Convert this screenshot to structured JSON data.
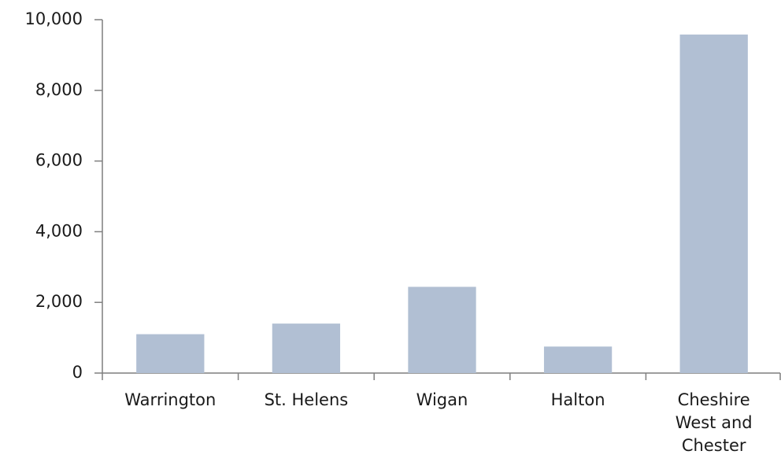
{
  "chart_data": {
    "type": "bar",
    "categories": [
      "Warrington",
      "St. Helens",
      "Wigan",
      "Halton",
      "Cheshire West and Chester"
    ],
    "values": [
      1100,
      1400,
      2440,
      750,
      9580
    ],
    "color": "#b1bfd3",
    "ylim": [
      0,
      10000
    ],
    "yticks": [
      0,
      {
        "value": 2000,
        "label": "2,000"
      },
      {
        "value": 4000,
        "label": "4,000"
      },
      {
        "value": 6000,
        "label": "6,000"
      },
      {
        "value": 8000,
        "label": "8,000"
      },
      {
        "value": 10000,
        "label": "10,000"
      }
    ],
    "grid": false
  }
}
